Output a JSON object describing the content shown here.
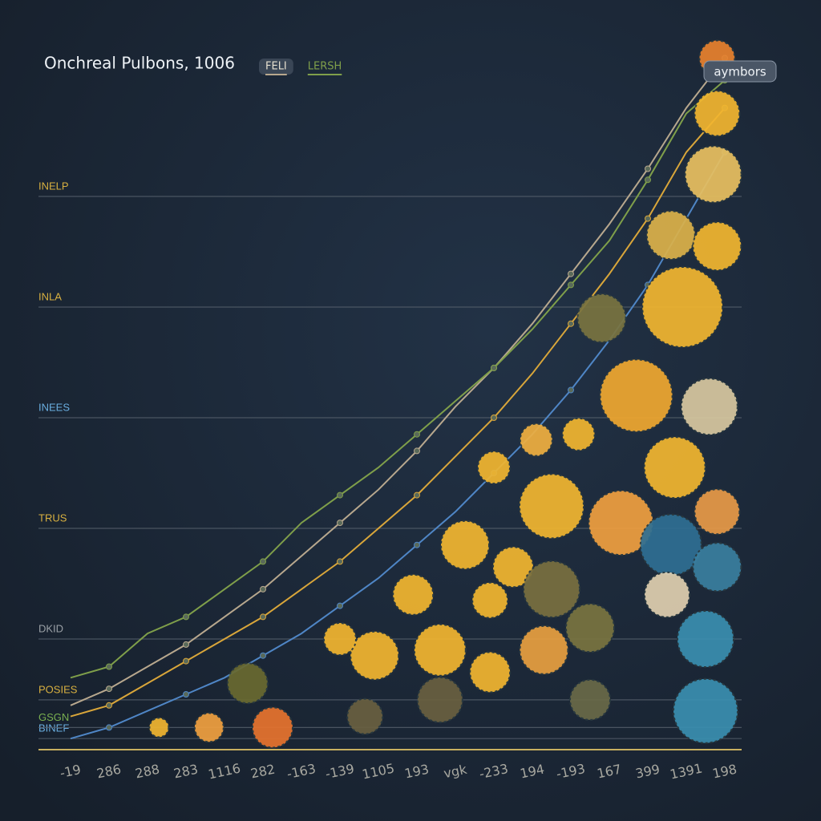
{
  "chart_data": [
    {
      "type": "line",
      "title": "Onchreal Pulbons, 1006",
      "categories": [
        "-19",
        "286",
        "288",
        "283",
        "1116",
        "282",
        "-163",
        "-139",
        "1105",
        "193",
        "vgk",
        "-233",
        "194",
        "-193",
        "167",
        "399",
        "1391",
        "198"
      ],
      "series": [
        {
          "name": "FELI",
          "color": "#b8a88e",
          "values": [
            8,
            11,
            15,
            19,
            24,
            29,
            35,
            41,
            47,
            54,
            62,
            69,
            77,
            86,
            95,
            105,
            116,
            125
          ]
        },
        {
          "name": "LERSH",
          "color": "#7f9f4a",
          "values": [
            13,
            15,
            21,
            24,
            29,
            34,
            41,
            46,
            51,
            57,
            63,
            69,
            76,
            84,
            92,
            103,
            115,
            121
          ]
        },
        {
          "color": "#d9a63a",
          "values": [
            6,
            8,
            12,
            16,
            20,
            24,
            29,
            34,
            40,
            46,
            53,
            60,
            68,
            77,
            86,
            96,
            108,
            116
          ]
        },
        {
          "color": "#4f86c6",
          "values": [
            2,
            4,
            7,
            10,
            13,
            17,
            21,
            26,
            31,
            37,
            43,
            50,
            57,
            65,
            74,
            84,
            96,
            108
          ]
        }
      ],
      "ylim": [
        0,
        130
      ],
      "yticks": [
        {
          "value": 2,
          "label": "BINEF"
        },
        {
          "value": 4,
          "label": "GSGN"
        },
        {
          "value": 9,
          "label": "POSIES"
        },
        {
          "value": 20,
          "label": "DKID"
        },
        {
          "value": 40,
          "label": "TRUS"
        },
        {
          "value": 60,
          "label": "INEES"
        },
        {
          "value": 80,
          "label": "INLA"
        },
        {
          "value": 100,
          "label": "INELP"
        }
      ],
      "ytick_colors": [
        "#6aaee0",
        "#7ab050",
        "#d8b040",
        "#9aa0a6",
        "#d8b040",
        "#6aaee0",
        "#d8b040",
        "#d8b040"
      ],
      "grid": true
    },
    {
      "type": "bubble",
      "name": "aymbors",
      "x": [
        16.8,
        16.8,
        16.7,
        15.6,
        16.8,
        15.9,
        13.8,
        14.7,
        16.6,
        15.7,
        11,
        12.5,
        14.3,
        16.8,
        10.25,
        15.6,
        16.8,
        11.5,
        12.5,
        15.5,
        8.9,
        10.9,
        13.5,
        16.5,
        7.9,
        9.6,
        12.3,
        10.9,
        7,
        16.5,
        13.5,
        9.6,
        4.6,
        5.25,
        3.6,
        2.3,
        7.65,
        13.2,
        12.1
      ],
      "values": [
        125,
        115,
        104,
        93,
        91,
        80,
        78,
        64,
        62,
        51,
        51,
        44,
        41,
        43,
        37,
        37,
        33,
        33,
        29,
        28,
        28,
        27,
        22,
        20,
        17,
        18,
        18,
        14,
        20,
        7,
        9,
        9,
        12,
        4,
        4,
        4,
        6,
        57,
        56
      ],
      "sizes": [
        22,
        28,
        35,
        30,
        30,
        50,
        30,
        45,
        35,
        38,
        20,
        40,
        40,
        28,
        30,
        38,
        30,
        25,
        35,
        28,
        25,
        22,
        30,
        35,
        30,
        32,
        30,
        25,
        20,
        40,
        25,
        28,
        25,
        25,
        18,
        12,
        22,
        20,
        20
      ],
      "colors": [
        "#e8822e",
        "#f2b630",
        "#e9c060",
        "#dcb24a",
        "#f2b630",
        "#f2b630",
        "#7a7440",
        "#f0a830",
        "#d8c8a0",
        "#f2b630",
        "#f2b630",
        "#f2b630",
        "#f0a040",
        "#e89a48",
        "#f2b630",
        "#2f6f93",
        "#3a7fa0",
        "#f2b630",
        "#7a7040",
        "#e0cfb0",
        "#f2b630",
        "#f2b630",
        "#7a7440",
        "#3a8fb0",
        "#f2b630",
        "#f2b630",
        "#e8a040",
        "#f2b630",
        "#f2b630",
        "#3a8fb0",
        "#6a6a48",
        "#6a6040",
        "#6a6a30",
        "#e8742e",
        "#f0a040",
        "#f2b630",
        "#6a6040",
        "#f2b630",
        "#f0b040"
      ],
      "xlim": [
        0,
        17
      ],
      "ylim": [
        0,
        130
      ]
    }
  ]
}
